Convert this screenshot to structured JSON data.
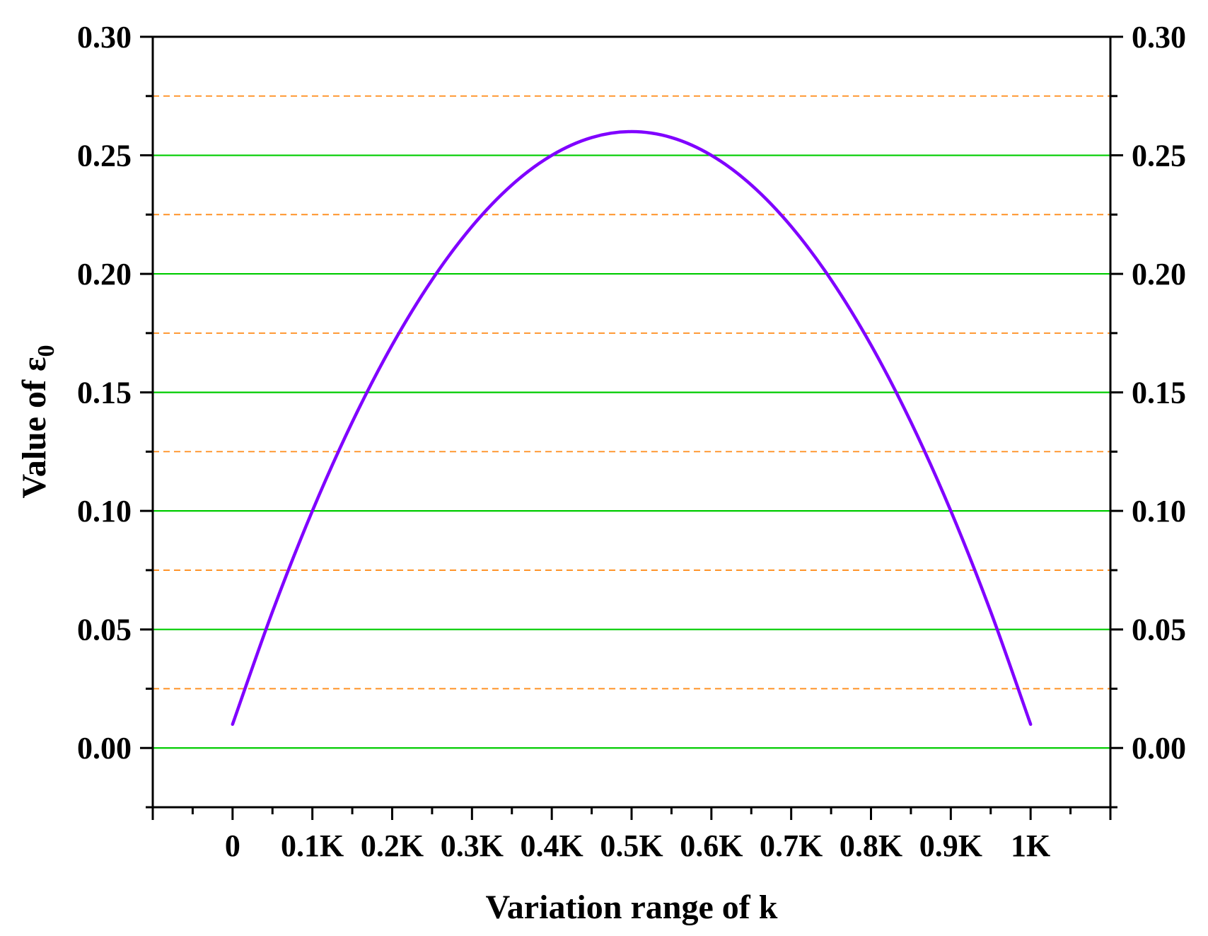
{
  "chart_data": {
    "type": "line",
    "xlabel": "Variation range of k",
    "ylabel": {
      "text": "Value of ε",
      "subscript": "0"
    },
    "xlim": [
      -0.1,
      1.1
    ],
    "ylim": [
      -0.025,
      0.3
    ],
    "x_ticks": [
      {
        "value": 0,
        "label": "0"
      },
      {
        "value": 0.1,
        "label": "0.1K"
      },
      {
        "value": 0.2,
        "label": "0.2K"
      },
      {
        "value": 0.3,
        "label": "0.3K"
      },
      {
        "value": 0.4,
        "label": "0.4K"
      },
      {
        "value": 0.5,
        "label": "0.5K"
      },
      {
        "value": 0.6,
        "label": "0.6K"
      },
      {
        "value": 0.7,
        "label": "0.7K"
      },
      {
        "value": 0.8,
        "label": "0.8K"
      },
      {
        "value": 0.9,
        "label": "0.9K"
      },
      {
        "value": 1.0,
        "label": "1K"
      }
    ],
    "y_ticks": [
      {
        "value": 0.0,
        "label": "0.00"
      },
      {
        "value": 0.05,
        "label": "0.05"
      },
      {
        "value": 0.1,
        "label": "0.10"
      },
      {
        "value": 0.15,
        "label": "0.15"
      },
      {
        "value": 0.2,
        "label": "0.20"
      },
      {
        "value": 0.25,
        "label": "0.25"
      },
      {
        "value": 0.3,
        "label": "0.30"
      }
    ],
    "minor_y_gridlines": [
      0.025,
      0.075,
      0.125,
      0.175,
      0.225,
      0.275
    ],
    "right_axis_mirrored": true,
    "grid": {
      "major": "solid",
      "minor": "dashed"
    },
    "series": [
      {
        "color": "#8000ff",
        "x": [
          0,
          0.05,
          0.1,
          0.15,
          0.2,
          0.25,
          0.3,
          0.35,
          0.4,
          0.45,
          0.5,
          0.55,
          0.6,
          0.65,
          0.7,
          0.75,
          0.8,
          0.85,
          0.9,
          0.95,
          1.0
        ],
        "y": [
          0.01,
          0.0575,
          0.1,
          0.1375,
          0.17,
          0.1975,
          0.22,
          0.2375,
          0.25,
          0.2575,
          0.26,
          0.2575,
          0.25,
          0.2375,
          0.22,
          0.1975,
          0.17,
          0.1375,
          0.1,
          0.0575,
          0.01
        ]
      }
    ]
  },
  "colors": {
    "curve": "#8000ff",
    "major_grid": "#00cc00",
    "minor_grid": "#ff8c1a",
    "axis": "#000000"
  }
}
